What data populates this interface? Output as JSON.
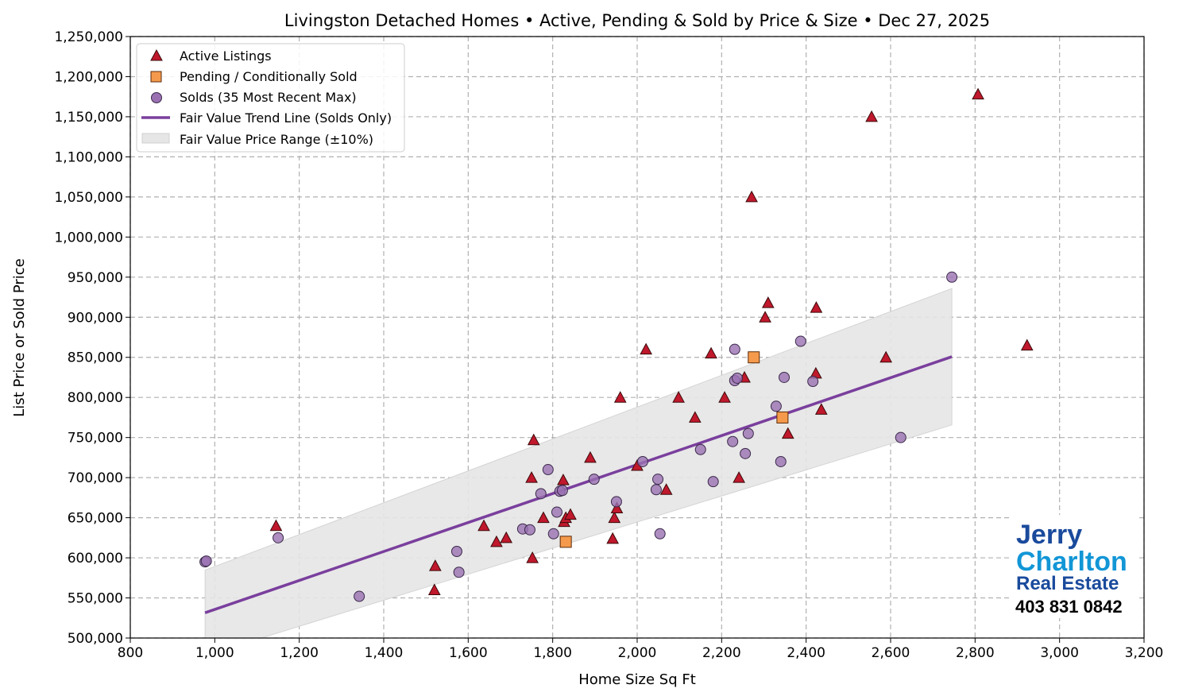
{
  "chart_data": {
    "type": "scatter",
    "title": "Livingston Detached Homes • Active, Pending & Sold by Price & Size • Dec 27, 2025",
    "xlabel": "Home Size Sq Ft",
    "ylabel": "List Price or Sold Price",
    "xlim": [
      800,
      3200
    ],
    "ylim": [
      500000,
      1250000
    ],
    "grid": true,
    "legend_position": "top-left",
    "xticks": [
      800,
      1000,
      1200,
      1400,
      1600,
      1800,
      2000,
      2200,
      2400,
      2600,
      2800,
      3000,
      3200
    ],
    "xtick_labels": [
      "800",
      "1,000",
      "1,200",
      "1,400",
      "1,600",
      "1,800",
      "2,000",
      "2,200",
      "2,400",
      "2,600",
      "2,800",
      "3,000",
      "3,200"
    ],
    "yticks": [
      500000,
      550000,
      600000,
      650000,
      700000,
      750000,
      800000,
      850000,
      900000,
      950000,
      1000000,
      1050000,
      1100000,
      1150000,
      1200000,
      1250000
    ],
    "ytick_labels": [
      "500,000",
      "550,000",
      "600,000",
      "650,000",
      "700,000",
      "750,000",
      "800,000",
      "850,000",
      "900,000",
      "950,000",
      "1,000,000",
      "1,050,000",
      "1,100,000",
      "1,150,000",
      "1,200,000",
      "1,250,000"
    ],
    "series": [
      {
        "name": "Active Listings",
        "marker": "triangle",
        "color": "#c0182c",
        "points": [
          [
            1145,
            640000
          ],
          [
            1520,
            560000
          ],
          [
            1522,
            590000
          ],
          [
            1637,
            640000
          ],
          [
            1667,
            620000
          ],
          [
            1690,
            625000
          ],
          [
            1752,
            600000
          ],
          [
            1750,
            700000
          ],
          [
            1755,
            747000
          ],
          [
            1778,
            650000
          ],
          [
            1825,
            697000
          ],
          [
            1827,
            645000
          ],
          [
            1831,
            650000
          ],
          [
            1842,
            654000
          ],
          [
            1889,
            725000
          ],
          [
            1942,
            624000
          ],
          [
            1946,
            650000
          ],
          [
            1952,
            662000
          ],
          [
            1960,
            800000
          ],
          [
            2000,
            715000
          ],
          [
            2021,
            860000
          ],
          [
            2069,
            685000
          ],
          [
            2098,
            800000
          ],
          [
            2137,
            775000
          ],
          [
            2175,
            855000
          ],
          [
            2207,
            800000
          ],
          [
            2241,
            700000
          ],
          [
            2254,
            825000
          ],
          [
            2271,
            1050000
          ],
          [
            2303,
            900000
          ],
          [
            2310,
            918000
          ],
          [
            2357,
            755000
          ],
          [
            2423,
            830000
          ],
          [
            2424,
            912000
          ],
          [
            2436,
            785000
          ],
          [
            2555,
            1150000
          ],
          [
            2589,
            850000
          ],
          [
            2807,
            1178000
          ],
          [
            2923,
            865000
          ]
        ]
      },
      {
        "name": "Pending / Conditionally Sold",
        "marker": "square",
        "color": "#f59a4c",
        "points": [
          [
            1831,
            620000
          ],
          [
            2276,
            850000
          ],
          [
            2344,
            775000
          ]
        ]
      },
      {
        "name": "Solds (35 Most Recent Max)",
        "marker": "circle",
        "color": "#9a70b2",
        "points": [
          [
            977,
            595000
          ],
          [
            980,
            596000
          ],
          [
            1150,
            625000
          ],
          [
            1342,
            552000
          ],
          [
            1573,
            608000
          ],
          [
            1578,
            582000
          ],
          [
            1729,
            636000
          ],
          [
            1746,
            635000
          ],
          [
            1772,
            680000
          ],
          [
            1789,
            710000
          ],
          [
            1802,
            630000
          ],
          [
            1810,
            657000
          ],
          [
            1817,
            683000
          ],
          [
            1823,
            684000
          ],
          [
            1898,
            698000
          ],
          [
            1951,
            670000
          ],
          [
            2013,
            720000
          ],
          [
            2045,
            685000
          ],
          [
            2049,
            698000
          ],
          [
            2054,
            630000
          ],
          [
            2150,
            735000
          ],
          [
            2180,
            695000
          ],
          [
            2226,
            745000
          ],
          [
            2231,
            860000
          ],
          [
            2231,
            821000
          ],
          [
            2237,
            824000
          ],
          [
            2256,
            730000
          ],
          [
            2263,
            755000
          ],
          [
            2329,
            789000
          ],
          [
            2340,
            720000
          ],
          [
            2348,
            825000
          ],
          [
            2387,
            870000
          ],
          [
            2416,
            820000
          ],
          [
            2624,
            750000
          ],
          [
            2745,
            950000
          ]
        ]
      }
    ],
    "trend_line": {
      "name": "Fair Value Trend Line (Solds Only)",
      "color": "#7a3f9d",
      "x": [
        977,
        2745
      ],
      "y": [
        531500,
        850800
      ]
    },
    "range_band": {
      "name": "Fair Value Price Range (±10%)",
      "color": "#e6e6e6",
      "pct": 10
    }
  },
  "logo": {
    "line1": "Jerry",
    "line2": "Charlton",
    "line3": "Real Estate",
    "phone": "403 831 0842",
    "colors": [
      "#1a4a9c",
      "#1296d6"
    ]
  }
}
